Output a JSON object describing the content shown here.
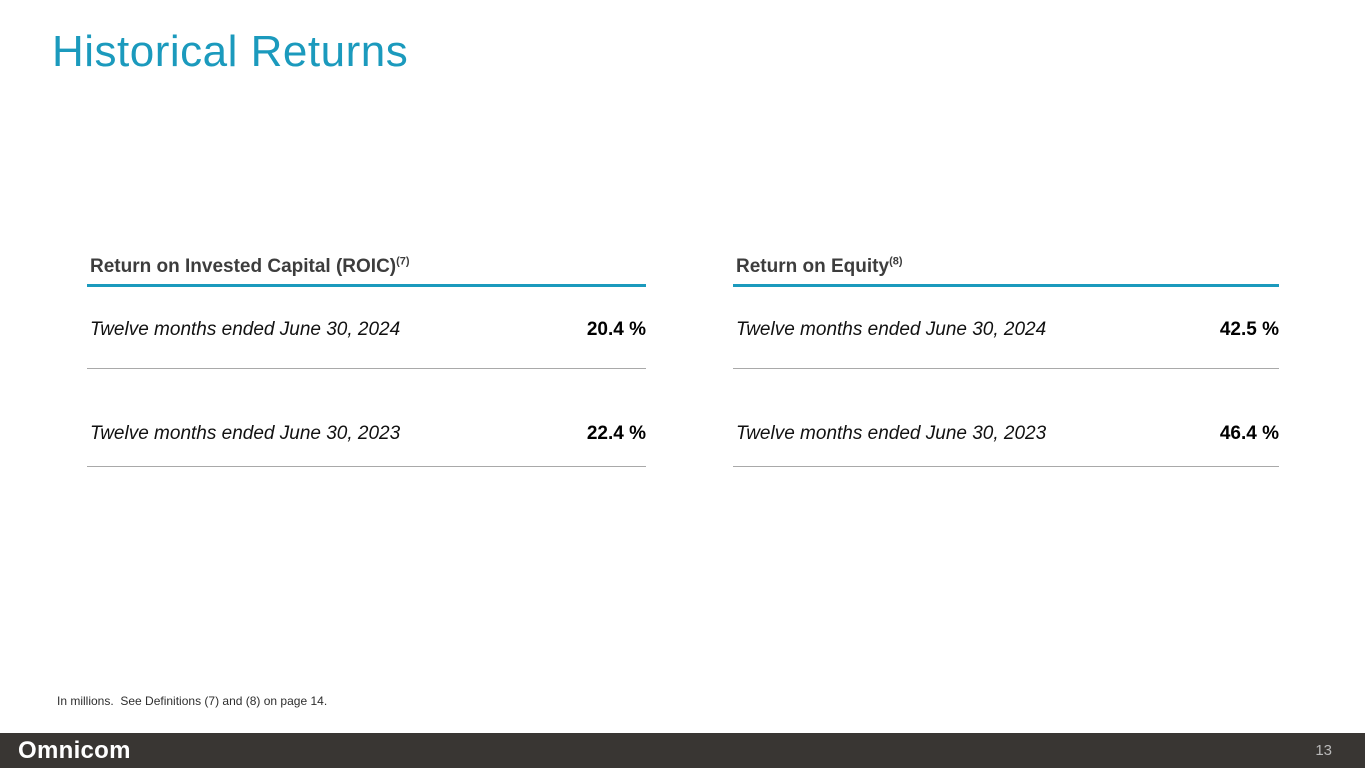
{
  "slide": {
    "title": "Historical Returns",
    "footnote": "In millions.  See Definitions (7) and (8) on page 14.",
    "footer": {
      "logo": "Omnicom",
      "page_number": "13"
    }
  },
  "tables": [
    {
      "title": "Return on Invested Capital (ROIC)",
      "superscript": "(7)",
      "rows": [
        {
          "label": "Twelve months ended June 30, 2024",
          "value": "20.4 %"
        },
        {
          "label": "Twelve months ended June 30, 2023",
          "value": "22.4 %"
        }
      ]
    },
    {
      "title": "Return on Equity",
      "superscript": "(8)",
      "rows": [
        {
          "label": "Twelve months ended June 30, 2024",
          "value": "42.5 %"
        },
        {
          "label": "Twelve months ended June 30, 2023",
          "value": "46.4 %"
        }
      ]
    }
  ],
  "chart_data": {
    "type": "table",
    "title": "Historical Returns",
    "series": [
      {
        "name": "Return on Invested Capital (ROIC)",
        "categories": [
          "Twelve months ended June 30, 2024",
          "Twelve months ended June 30, 2023"
        ],
        "values": [
          20.4,
          22.4
        ],
        "unit": "%"
      },
      {
        "name": "Return on Equity",
        "categories": [
          "Twelve months ended June 30, 2024",
          "Twelve months ended June 30, 2023"
        ],
        "values": [
          42.5,
          46.4
        ],
        "unit": "%"
      }
    ]
  },
  "colors": {
    "accent": "#1b9abd",
    "footer_bg": "#393633"
  }
}
